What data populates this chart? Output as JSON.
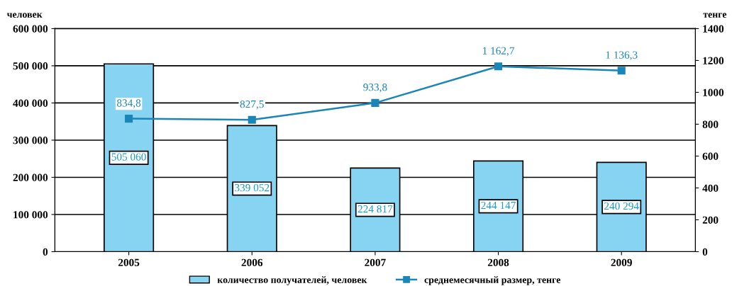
{
  "chart_data": {
    "type": "bar",
    "categories": [
      "2005",
      "2006",
      "2007",
      "2008",
      "2009"
    ],
    "ylabel": "человек",
    "y2label": "тенге",
    "series": [
      {
        "name": "количество получателей, человек",
        "color": "#87d3f2",
        "values": [
          505060,
          339052,
          224817,
          244147,
          240294
        ],
        "value_labels": [
          "505 060",
          "339 052",
          "224 817",
          "244 147",
          "240 294"
        ]
      },
      {
        "name": "среднемесячный размер, тенге",
        "type": "line",
        "axis": "y2",
        "color": "#1a86b8",
        "values": [
          834.8,
          827.5,
          933.8,
          1162.7,
          1136.3
        ],
        "value_labels": [
          "834,8",
          "827,5",
          "933,8",
          "1 162,7",
          "1 136,3"
        ]
      }
    ],
    "ylim": [
      0,
      600000
    ],
    "yticks": [
      {
        "value": 0,
        "label": "0"
      },
      {
        "value": 100000,
        "label": "100 000"
      },
      {
        "value": 200000,
        "label": "200 000"
      },
      {
        "value": 300000,
        "label": "300 000"
      },
      {
        "value": 400000,
        "label": "400 000"
      },
      {
        "value": 500000,
        "label": "500 000"
      },
      {
        "value": 600000,
        "label": "600 000"
      }
    ],
    "y2lim": [
      0,
      1400
    ],
    "y2ticks": [
      0,
      200,
      400,
      600,
      800,
      1000,
      1200,
      1400
    ],
    "grid": "y",
    "legend": "bottom",
    "marker": "square",
    "line_style": "solid"
  }
}
